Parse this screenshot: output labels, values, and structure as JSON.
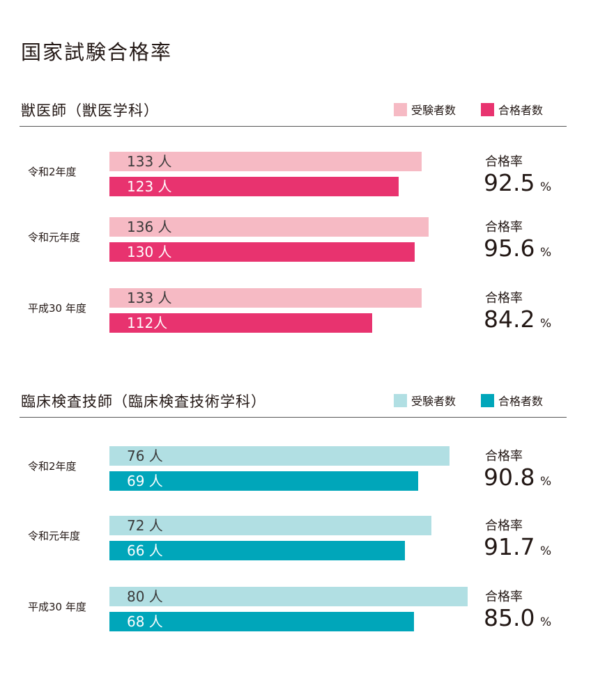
{
  "title": "国家試験合格率",
  "chart_data": [
    {
      "type": "bar",
      "orientation": "horizontal",
      "title": "獣医師（獣医学科）",
      "legend": [
        "受験者数",
        "合格者数"
      ],
      "colors": {
        "examinees": "#f6bac4",
        "passers": "#e8336f"
      },
      "rate_label": "合格率",
      "percent_sign": "%",
      "groups": [
        {
          "year": "令和2年度",
          "examinees": 133,
          "examinees_label": "133 人",
          "passers": 123,
          "passers_label": "123 人",
          "rate": "92.5"
        },
        {
          "year": "令和元年度",
          "examinees": 136,
          "examinees_label": "136 人",
          "passers": 130,
          "passers_label": "130 人",
          "rate": "95.6"
        },
        {
          "year": "平成30 年度",
          "examinees": 133,
          "examinees_label": "133 人",
          "passers": 112,
          "passers_label": "112人",
          "rate": "84.2"
        }
      ]
    },
    {
      "type": "bar",
      "orientation": "horizontal",
      "title": "臨床検査技師（臨床検査技術学科）",
      "legend": [
        "受験者数",
        "合格者数"
      ],
      "colors": {
        "examinees": "#b1dfe3",
        "passers": "#00a6ba"
      },
      "rate_label": "合格率",
      "percent_sign": "%",
      "groups": [
        {
          "year": "令和2年度",
          "examinees": 76,
          "examinees_label": "76 人",
          "passers": 69,
          "passers_label": "69 人",
          "rate": "90.8"
        },
        {
          "year": "令和元年度",
          "examinees": 72,
          "examinees_label": "72 人",
          "passers": 66,
          "passers_label": "66 人",
          "rate": "91.7"
        },
        {
          "year": "平成30 年度",
          "examinees": 80,
          "examinees_label": "80 人",
          "passers": 68,
          "passers_label": "68 人",
          "rate": "85.0"
        }
      ]
    }
  ]
}
